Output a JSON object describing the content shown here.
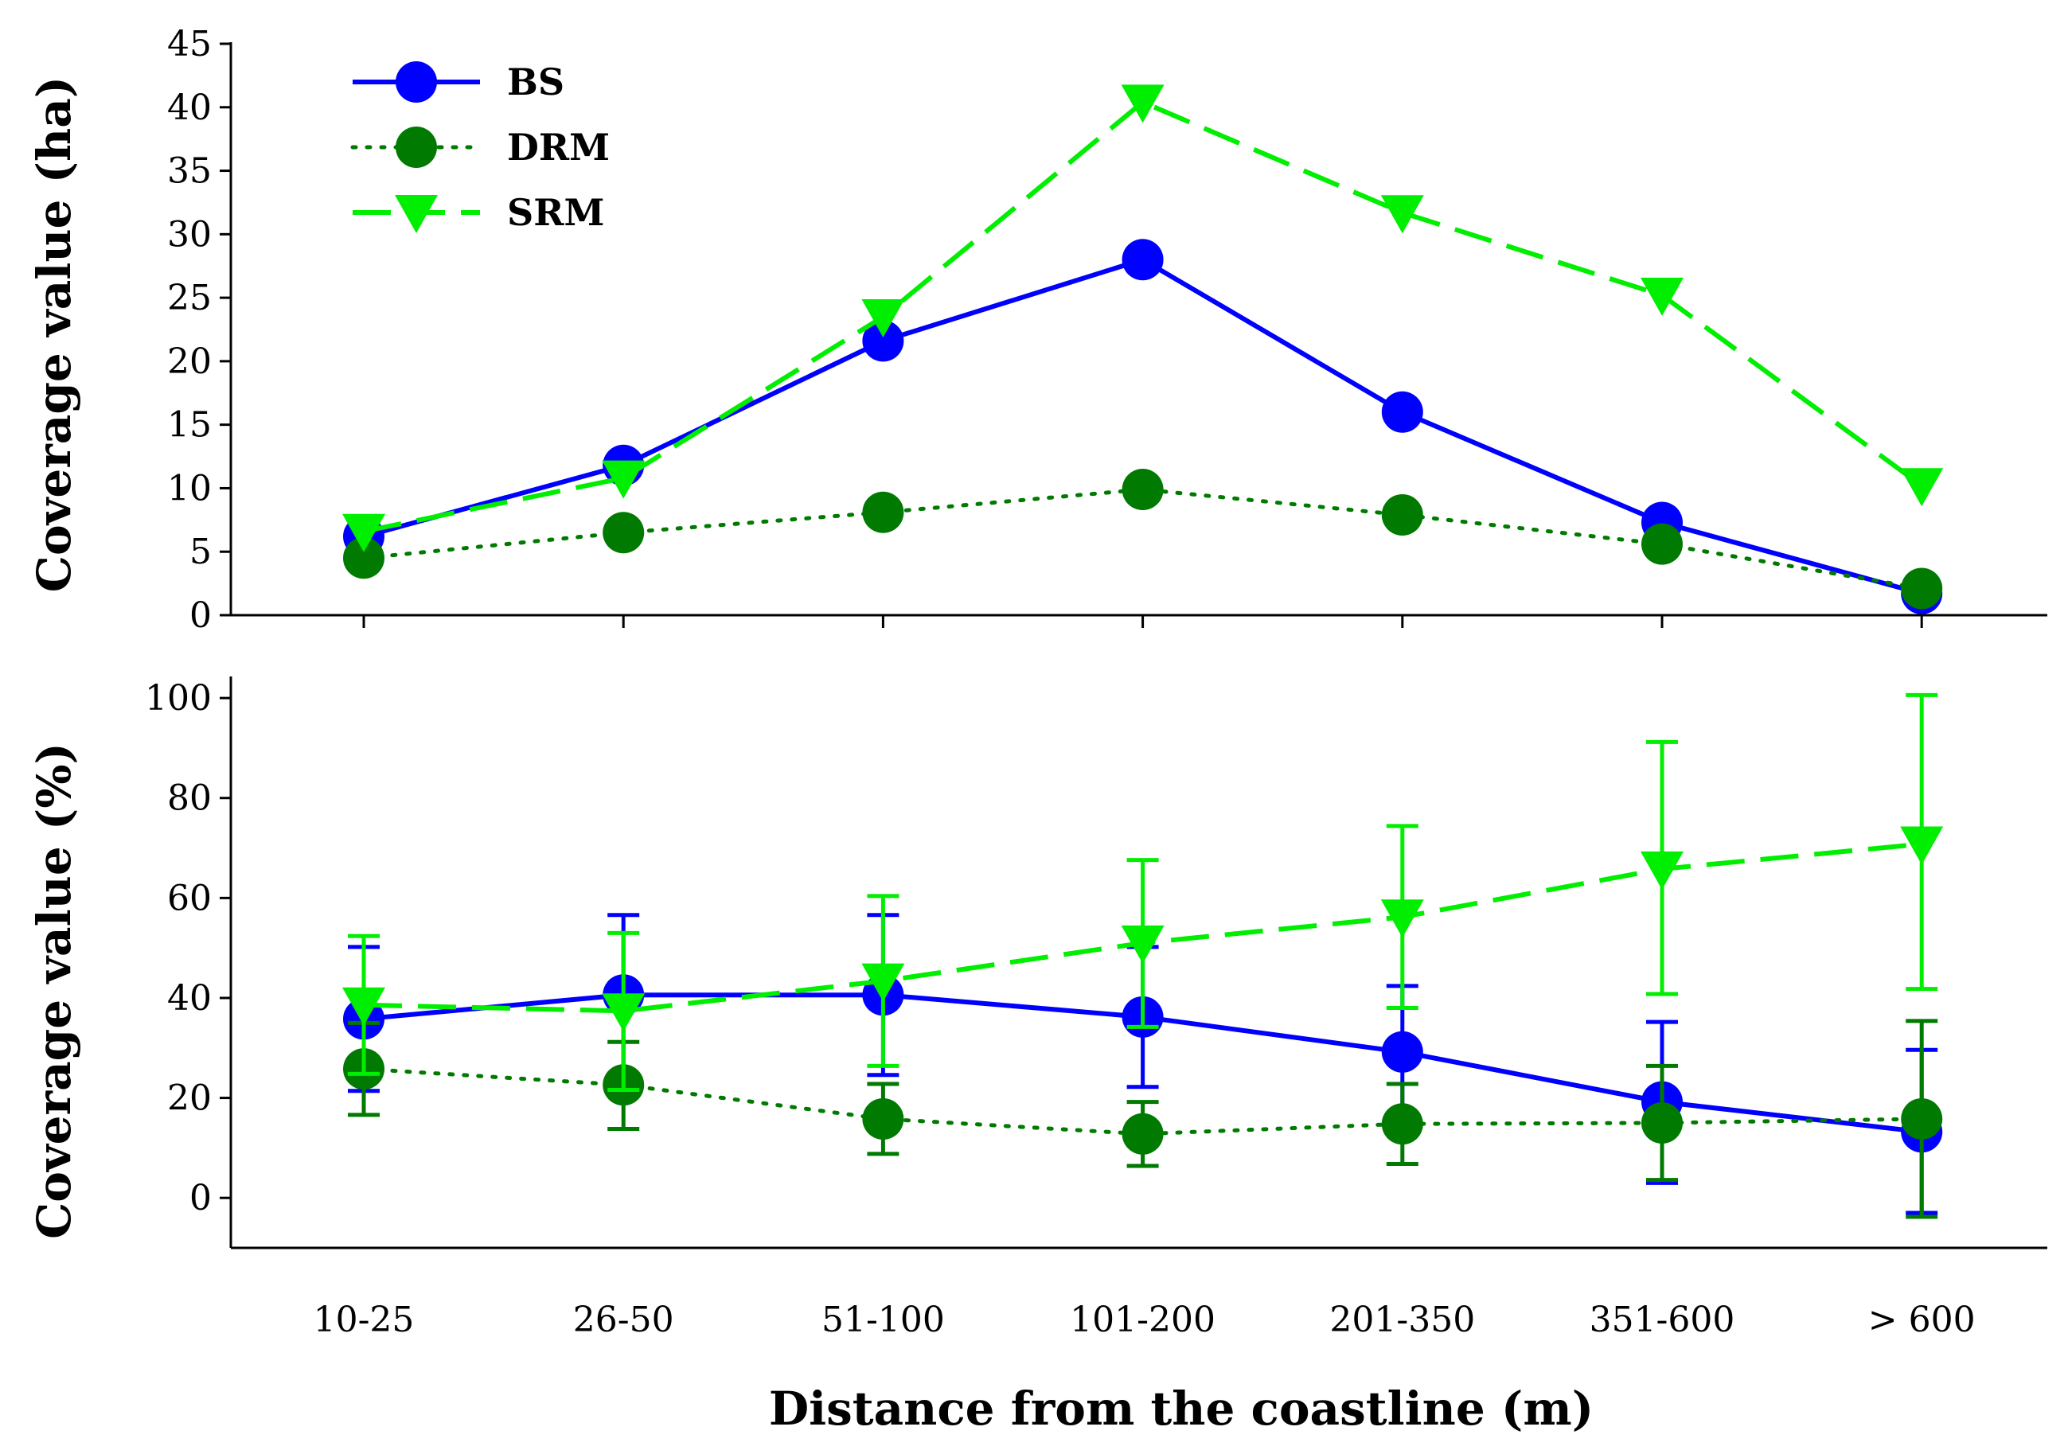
{
  "chart_data": [
    {
      "type": "line",
      "panel": "top",
      "categories": [
        "10-25",
        "26-50",
        "51-100",
        "101-200",
        "201-350",
        "351-600",
        "> 600"
      ],
      "ylabel": "Coverage value (ha)",
      "ylim": [
        0,
        45
      ],
      "yticks": [
        0,
        5,
        10,
        15,
        20,
        25,
        30,
        35,
        40,
        45
      ],
      "legend_position": "top-left",
      "series": [
        {
          "name": "BS",
          "values": [
            6.2,
            11.8,
            21.6,
            28.0,
            16.0,
            7.3,
            1.7
          ],
          "color": "#0000ff",
          "style": "solid",
          "marker": "circle"
        },
        {
          "name": "DRM",
          "values": [
            4.5,
            6.5,
            8.1,
            9.9,
            7.9,
            5.6,
            2.1
          ],
          "color": "#007a00",
          "style": "dotted",
          "marker": "circle"
        },
        {
          "name": "SRM",
          "values": [
            6.6,
            10.8,
            23.5,
            40.4,
            31.7,
            25.2,
            10.2
          ],
          "color": "#00ee00",
          "style": "dashed",
          "marker": "triangle-down"
        }
      ]
    },
    {
      "type": "line",
      "panel": "bottom",
      "categories": [
        "10-25",
        "26-50",
        "51-100",
        "101-200",
        "201-350",
        "351-600",
        "> 600"
      ],
      "ylabel": "Coverage value (%)",
      "xlabel": "Distance from the coastline (m)",
      "ylim": [
        -10,
        104
      ],
      "yticks": [
        0,
        20,
        40,
        60,
        80,
        100
      ],
      "series": [
        {
          "name": "BS",
          "values": [
            35.8,
            40.6,
            40.6,
            36.2,
            29.2,
            19.2,
            13.2
          ],
          "err_low": [
            21.4,
            24.6,
            24.6,
            22.2,
            15.0,
            3.0,
            -3.0
          ],
          "err_high": [
            50.2,
            56.6,
            56.6,
            50.2,
            42.4,
            35.2,
            29.6
          ],
          "color": "#0000ff",
          "style": "solid",
          "marker": "circle"
        },
        {
          "name": "DRM",
          "values": [
            25.8,
            22.6,
            15.8,
            12.8,
            14.8,
            15.0,
            15.8
          ],
          "err_low": [
            16.6,
            13.8,
            8.8,
            6.4,
            6.8,
            3.6,
            -3.8
          ],
          "err_high": [
            35.0,
            31.2,
            22.8,
            19.2,
            22.8,
            26.4,
            35.4
          ],
          "color": "#007a00",
          "style": "dotted",
          "marker": "circle"
        },
        {
          "name": "SRM",
          "values": [
            38.6,
            37.4,
            43.4,
            51.0,
            56.2,
            65.8,
            70.8
          ],
          "err_low": [
            24.8,
            21.6,
            26.4,
            34.2,
            38.0,
            40.8,
            41.8
          ],
          "err_high": [
            52.4,
            53.0,
            60.4,
            67.6,
            74.4,
            91.2,
            100.6
          ],
          "color": "#00ee00",
          "style": "dashed",
          "marker": "triangle-down"
        }
      ]
    }
  ]
}
